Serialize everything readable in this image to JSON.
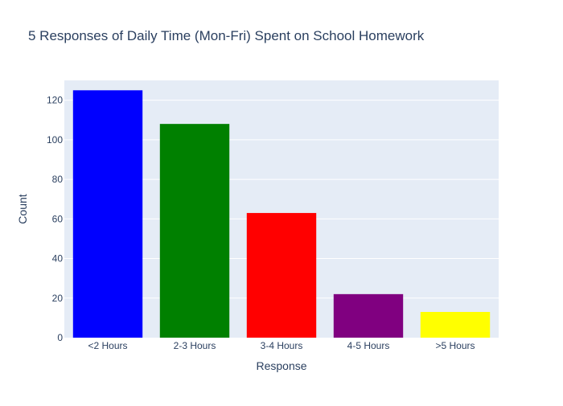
{
  "chart_data": {
    "type": "bar",
    "title": "5 Responses of Daily Time (Mon-Fri) Spent on School Homework",
    "xlabel": "Response",
    "ylabel": "Count",
    "categories": [
      "<2 Hours",
      "2-3 Hours",
      "3-4 Hours",
      "4-5 Hours",
      ">5 Hours"
    ],
    "values": [
      125,
      108,
      63,
      22,
      13
    ],
    "colors": [
      "#0000ff",
      "#008000",
      "#ff0000",
      "#800080",
      "#ffff00"
    ],
    "ylim": [
      0,
      130
    ],
    "yticks": [
      0,
      20,
      40,
      60,
      80,
      100,
      120
    ],
    "grid": true,
    "legend": "none"
  },
  "style": {
    "plot_background": "#e5ecf6",
    "grid_color": "#ffffff",
    "text_color": "#2a3f5f"
  }
}
